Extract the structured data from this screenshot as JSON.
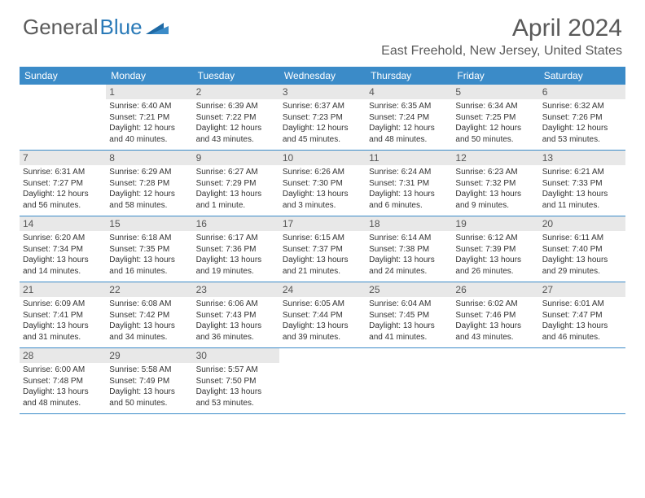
{
  "brand": {
    "part1": "General",
    "part2": "Blue"
  },
  "title": "April 2024",
  "location": "East Freehold, New Jersey, United States",
  "colors": {
    "header_bg": "#3b8bc8",
    "daynum_bg": "#e8e8e8",
    "text": "#5a5a5a",
    "brand_blue": "#2a7ab8"
  },
  "day_labels": [
    "Sunday",
    "Monday",
    "Tuesday",
    "Wednesday",
    "Thursday",
    "Friday",
    "Saturday"
  ],
  "weeks": [
    [
      {
        "n": "",
        "sunrise": "",
        "sunset": "",
        "daylight": ""
      },
      {
        "n": "1",
        "sunrise": "Sunrise: 6:40 AM",
        "sunset": "Sunset: 7:21 PM",
        "daylight": "Daylight: 12 hours and 40 minutes."
      },
      {
        "n": "2",
        "sunrise": "Sunrise: 6:39 AM",
        "sunset": "Sunset: 7:22 PM",
        "daylight": "Daylight: 12 hours and 43 minutes."
      },
      {
        "n": "3",
        "sunrise": "Sunrise: 6:37 AM",
        "sunset": "Sunset: 7:23 PM",
        "daylight": "Daylight: 12 hours and 45 minutes."
      },
      {
        "n": "4",
        "sunrise": "Sunrise: 6:35 AM",
        "sunset": "Sunset: 7:24 PM",
        "daylight": "Daylight: 12 hours and 48 minutes."
      },
      {
        "n": "5",
        "sunrise": "Sunrise: 6:34 AM",
        "sunset": "Sunset: 7:25 PM",
        "daylight": "Daylight: 12 hours and 50 minutes."
      },
      {
        "n": "6",
        "sunrise": "Sunrise: 6:32 AM",
        "sunset": "Sunset: 7:26 PM",
        "daylight": "Daylight: 12 hours and 53 minutes."
      }
    ],
    [
      {
        "n": "7",
        "sunrise": "Sunrise: 6:31 AM",
        "sunset": "Sunset: 7:27 PM",
        "daylight": "Daylight: 12 hours and 56 minutes."
      },
      {
        "n": "8",
        "sunrise": "Sunrise: 6:29 AM",
        "sunset": "Sunset: 7:28 PM",
        "daylight": "Daylight: 12 hours and 58 minutes."
      },
      {
        "n": "9",
        "sunrise": "Sunrise: 6:27 AM",
        "sunset": "Sunset: 7:29 PM",
        "daylight": "Daylight: 13 hours and 1 minute."
      },
      {
        "n": "10",
        "sunrise": "Sunrise: 6:26 AM",
        "sunset": "Sunset: 7:30 PM",
        "daylight": "Daylight: 13 hours and 3 minutes."
      },
      {
        "n": "11",
        "sunrise": "Sunrise: 6:24 AM",
        "sunset": "Sunset: 7:31 PM",
        "daylight": "Daylight: 13 hours and 6 minutes."
      },
      {
        "n": "12",
        "sunrise": "Sunrise: 6:23 AM",
        "sunset": "Sunset: 7:32 PM",
        "daylight": "Daylight: 13 hours and 9 minutes."
      },
      {
        "n": "13",
        "sunrise": "Sunrise: 6:21 AM",
        "sunset": "Sunset: 7:33 PM",
        "daylight": "Daylight: 13 hours and 11 minutes."
      }
    ],
    [
      {
        "n": "14",
        "sunrise": "Sunrise: 6:20 AM",
        "sunset": "Sunset: 7:34 PM",
        "daylight": "Daylight: 13 hours and 14 minutes."
      },
      {
        "n": "15",
        "sunrise": "Sunrise: 6:18 AM",
        "sunset": "Sunset: 7:35 PM",
        "daylight": "Daylight: 13 hours and 16 minutes."
      },
      {
        "n": "16",
        "sunrise": "Sunrise: 6:17 AM",
        "sunset": "Sunset: 7:36 PM",
        "daylight": "Daylight: 13 hours and 19 minutes."
      },
      {
        "n": "17",
        "sunrise": "Sunrise: 6:15 AM",
        "sunset": "Sunset: 7:37 PM",
        "daylight": "Daylight: 13 hours and 21 minutes."
      },
      {
        "n": "18",
        "sunrise": "Sunrise: 6:14 AM",
        "sunset": "Sunset: 7:38 PM",
        "daylight": "Daylight: 13 hours and 24 minutes."
      },
      {
        "n": "19",
        "sunrise": "Sunrise: 6:12 AM",
        "sunset": "Sunset: 7:39 PM",
        "daylight": "Daylight: 13 hours and 26 minutes."
      },
      {
        "n": "20",
        "sunrise": "Sunrise: 6:11 AM",
        "sunset": "Sunset: 7:40 PM",
        "daylight": "Daylight: 13 hours and 29 minutes."
      }
    ],
    [
      {
        "n": "21",
        "sunrise": "Sunrise: 6:09 AM",
        "sunset": "Sunset: 7:41 PM",
        "daylight": "Daylight: 13 hours and 31 minutes."
      },
      {
        "n": "22",
        "sunrise": "Sunrise: 6:08 AM",
        "sunset": "Sunset: 7:42 PM",
        "daylight": "Daylight: 13 hours and 34 minutes."
      },
      {
        "n": "23",
        "sunrise": "Sunrise: 6:06 AM",
        "sunset": "Sunset: 7:43 PM",
        "daylight": "Daylight: 13 hours and 36 minutes."
      },
      {
        "n": "24",
        "sunrise": "Sunrise: 6:05 AM",
        "sunset": "Sunset: 7:44 PM",
        "daylight": "Daylight: 13 hours and 39 minutes."
      },
      {
        "n": "25",
        "sunrise": "Sunrise: 6:04 AM",
        "sunset": "Sunset: 7:45 PM",
        "daylight": "Daylight: 13 hours and 41 minutes."
      },
      {
        "n": "26",
        "sunrise": "Sunrise: 6:02 AM",
        "sunset": "Sunset: 7:46 PM",
        "daylight": "Daylight: 13 hours and 43 minutes."
      },
      {
        "n": "27",
        "sunrise": "Sunrise: 6:01 AM",
        "sunset": "Sunset: 7:47 PM",
        "daylight": "Daylight: 13 hours and 46 minutes."
      }
    ],
    [
      {
        "n": "28",
        "sunrise": "Sunrise: 6:00 AM",
        "sunset": "Sunset: 7:48 PM",
        "daylight": "Daylight: 13 hours and 48 minutes."
      },
      {
        "n": "29",
        "sunrise": "Sunrise: 5:58 AM",
        "sunset": "Sunset: 7:49 PM",
        "daylight": "Daylight: 13 hours and 50 minutes."
      },
      {
        "n": "30",
        "sunrise": "Sunrise: 5:57 AM",
        "sunset": "Sunset: 7:50 PM",
        "daylight": "Daylight: 13 hours and 53 minutes."
      },
      {
        "n": "",
        "sunrise": "",
        "sunset": "",
        "daylight": ""
      },
      {
        "n": "",
        "sunrise": "",
        "sunset": "",
        "daylight": ""
      },
      {
        "n": "",
        "sunrise": "",
        "sunset": "",
        "daylight": ""
      },
      {
        "n": "",
        "sunrise": "",
        "sunset": "",
        "daylight": ""
      }
    ]
  ]
}
